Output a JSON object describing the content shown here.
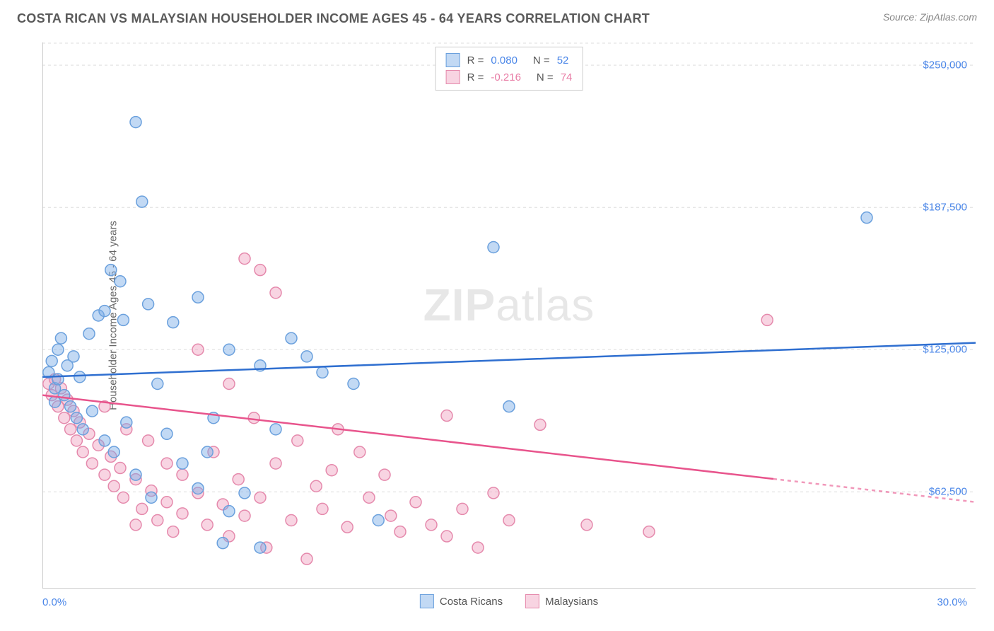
{
  "header": {
    "title": "COSTA RICAN VS MALAYSIAN HOUSEHOLDER INCOME AGES 45 - 64 YEARS CORRELATION CHART",
    "source": "Source: ZipAtlas.com"
  },
  "chart": {
    "type": "scatter",
    "y_axis_label": "Householder Income Ages 45 - 64 years",
    "xlim": [
      0,
      30
    ],
    "ylim": [
      20000,
      260000
    ],
    "x_tick_positions": [
      0,
      2.5,
      5,
      7.5,
      10,
      12.5,
      15,
      17.5,
      20,
      22.5,
      25,
      27.5
    ],
    "x_min_label": "0.0%",
    "x_max_label": "30.0%",
    "y_ticks": [
      {
        "value": 62500,
        "label": "$62,500"
      },
      {
        "value": 125000,
        "label": "$125,000"
      },
      {
        "value": 187500,
        "label": "$187,500"
      },
      {
        "value": 250000,
        "label": "$250,000"
      }
    ],
    "grid_color": "#dddddd",
    "axis_color": "#bbbbbb",
    "background_color": "#ffffff",
    "watermark": {
      "bold": "ZIP",
      "rest": "atlas",
      "color": "rgba(120,120,120,0.18)",
      "fontsize": 64
    },
    "series": [
      {
        "name": "Costa Ricans",
        "marker_color_fill": "rgba(120,170,230,0.45)",
        "marker_color_stroke": "#6aa0dd",
        "marker_radius": 8,
        "line_color": "#2f6fd0",
        "line_width": 2.5,
        "regression": {
          "x1": 0,
          "y1": 113000,
          "x2": 30,
          "y2": 128000,
          "solid_until_x": 30
        },
        "R": "0.080",
        "N": "52",
        "points": [
          [
            0.2,
            115000
          ],
          [
            0.3,
            120000
          ],
          [
            0.4,
            108000
          ],
          [
            0.5,
            125000
          ],
          [
            0.5,
            112000
          ],
          [
            0.6,
            130000
          ],
          [
            0.7,
            105000
          ],
          [
            0.8,
            118000
          ],
          [
            0.9,
            100000
          ],
          [
            1.0,
            122000
          ],
          [
            1.1,
            95000
          ],
          [
            1.2,
            113000
          ],
          [
            1.3,
            90000
          ],
          [
            1.5,
            132000
          ],
          [
            1.6,
            98000
          ],
          [
            1.8,
            140000
          ],
          [
            2.0,
            142000
          ],
          [
            2.0,
            85000
          ],
          [
            2.2,
            160000
          ],
          [
            2.3,
            80000
          ],
          [
            2.5,
            155000
          ],
          [
            2.6,
            138000
          ],
          [
            2.7,
            93000
          ],
          [
            3.0,
            225000
          ],
          [
            3.0,
            70000
          ],
          [
            3.2,
            190000
          ],
          [
            3.4,
            145000
          ],
          [
            3.5,
            60000
          ],
          [
            3.7,
            110000
          ],
          [
            4.0,
            88000
          ],
          [
            4.2,
            137000
          ],
          [
            4.5,
            75000
          ],
          [
            5.0,
            148000
          ],
          [
            5.0,
            64000
          ],
          [
            5.3,
            80000
          ],
          [
            5.5,
            95000
          ],
          [
            5.8,
            40000
          ],
          [
            6.0,
            125000
          ],
          [
            6.0,
            54000
          ],
          [
            6.5,
            62000
          ],
          [
            7.0,
            38000
          ],
          [
            7.0,
            118000
          ],
          [
            7.5,
            90000
          ],
          [
            8.0,
            130000
          ],
          [
            8.5,
            122000
          ],
          [
            9.0,
            115000
          ],
          [
            10.0,
            110000
          ],
          [
            10.8,
            50000
          ],
          [
            14.5,
            170000
          ],
          [
            15.0,
            100000
          ],
          [
            26.5,
            183000
          ],
          [
            0.4,
            102000
          ]
        ]
      },
      {
        "name": "Malaysians",
        "marker_color_fill": "rgba(240,160,190,0.45)",
        "marker_color_stroke": "#e589ac",
        "marker_radius": 8,
        "line_color": "#e8548c",
        "line_width": 2.5,
        "regression": {
          "x1": 0,
          "y1": 105000,
          "x2": 30,
          "y2": 58000,
          "solid_until_x": 23.5
        },
        "R": "-0.216",
        "N": "74",
        "points": [
          [
            0.2,
            110000
          ],
          [
            0.3,
            105000
          ],
          [
            0.4,
            112000
          ],
          [
            0.5,
            100000
          ],
          [
            0.6,
            108000
          ],
          [
            0.7,
            95000
          ],
          [
            0.8,
            103000
          ],
          [
            0.9,
            90000
          ],
          [
            1.0,
            98000
          ],
          [
            1.1,
            85000
          ],
          [
            1.2,
            93000
          ],
          [
            1.3,
            80000
          ],
          [
            1.5,
            88000
          ],
          [
            1.6,
            75000
          ],
          [
            1.8,
            83000
          ],
          [
            2.0,
            70000
          ],
          [
            2.0,
            100000
          ],
          [
            2.2,
            78000
          ],
          [
            2.3,
            65000
          ],
          [
            2.5,
            73000
          ],
          [
            2.6,
            60000
          ],
          [
            2.7,
            90000
          ],
          [
            3.0,
            68000
          ],
          [
            3.0,
            48000
          ],
          [
            3.2,
            55000
          ],
          [
            3.4,
            85000
          ],
          [
            3.5,
            63000
          ],
          [
            3.7,
            50000
          ],
          [
            4.0,
            75000
          ],
          [
            4.0,
            58000
          ],
          [
            4.2,
            45000
          ],
          [
            4.5,
            70000
          ],
          [
            4.5,
            53000
          ],
          [
            5.0,
            125000
          ],
          [
            5.0,
            62000
          ],
          [
            5.3,
            48000
          ],
          [
            5.5,
            80000
          ],
          [
            5.8,
            57000
          ],
          [
            6.0,
            110000
          ],
          [
            6.0,
            43000
          ],
          [
            6.3,
            68000
          ],
          [
            6.5,
            52000
          ],
          [
            6.8,
            95000
          ],
          [
            7.0,
            160000
          ],
          [
            7.0,
            60000
          ],
          [
            7.2,
            38000
          ],
          [
            7.5,
            150000
          ],
          [
            7.5,
            75000
          ],
          [
            8.0,
            50000
          ],
          [
            8.2,
            85000
          ],
          [
            8.5,
            33000
          ],
          [
            8.8,
            65000
          ],
          [
            9.0,
            55000
          ],
          [
            9.3,
            72000
          ],
          [
            9.5,
            90000
          ],
          [
            9.8,
            47000
          ],
          [
            10.2,
            80000
          ],
          [
            10.5,
            60000
          ],
          [
            11.0,
            70000
          ],
          [
            11.2,
            52000
          ],
          [
            11.5,
            45000
          ],
          [
            12.0,
            58000
          ],
          [
            12.5,
            48000
          ],
          [
            13.0,
            96000
          ],
          [
            13.0,
            43000
          ],
          [
            13.5,
            55000
          ],
          [
            14.0,
            38000
          ],
          [
            14.5,
            62000
          ],
          [
            15.0,
            50000
          ],
          [
            16.0,
            92000
          ],
          [
            17.5,
            48000
          ],
          [
            19.5,
            45000
          ],
          [
            23.3,
            138000
          ],
          [
            6.5,
            165000
          ]
        ]
      }
    ],
    "stats_legend": {
      "border_color": "#cccccc",
      "fontsize": 15
    },
    "bottom_legend": {
      "fontsize": 15,
      "label1": "Costa Ricans",
      "label2": "Malaysians"
    }
  }
}
